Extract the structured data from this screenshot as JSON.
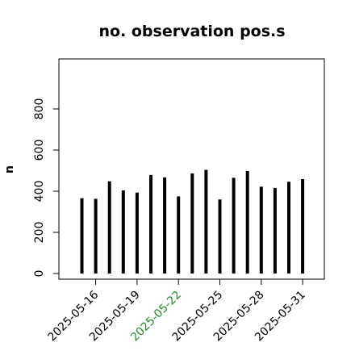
{
  "chart_data": {
    "type": "bar",
    "title": "no. observation pos.s",
    "xlabel": "",
    "ylabel": "n",
    "ylim": [
      0,
      1000
    ],
    "yticks": [
      0,
      200,
      400,
      600,
      800
    ],
    "categories": [
      "2025-05-15",
      "2025-05-16",
      "2025-05-17",
      "2025-05-18",
      "2025-05-19",
      "2025-05-20",
      "2025-05-21",
      "2025-05-22",
      "2025-05-23",
      "2025-05-24",
      "2025-05-25",
      "2025-05-26",
      "2025-05-27",
      "2025-05-28",
      "2025-05-29",
      "2025-05-30",
      "2025-05-31",
      "2025-06-01"
    ],
    "values": [
      366,
      363,
      448,
      404,
      393,
      479,
      467,
      375,
      487,
      504,
      360,
      465,
      498,
      422,
      416,
      446,
      459,
      0
    ],
    "xtick_labels": [
      {
        "label": "2025-05-16",
        "color": "#000000"
      },
      {
        "label": "2025-05-19",
        "color": "#000000"
      },
      {
        "label": "2025-05-22",
        "color": "#228B22"
      },
      {
        "label": "2025-05-25",
        "color": "#000000"
      },
      {
        "label": "2025-05-28",
        "color": "#000000"
      },
      {
        "label": "2025-05-31",
        "color": "#000000"
      }
    ],
    "bar_color": "#000000",
    "grid": false
  }
}
